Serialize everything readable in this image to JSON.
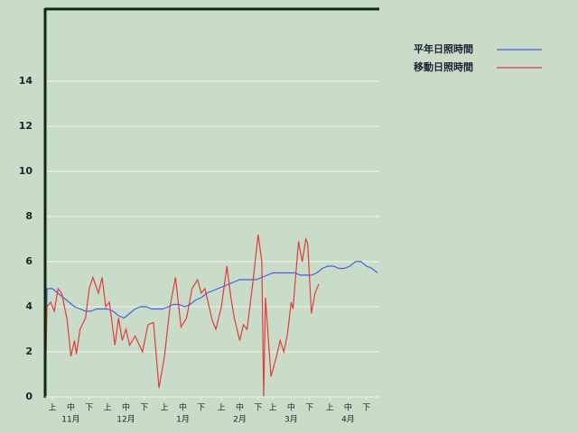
{
  "chart_data": {
    "type": "line",
    "series": [
      {
        "name": "平年日照時間",
        "color": "#4a5ee0",
        "x": [
          0,
          1,
          4,
          7,
          10,
          13,
          16,
          19,
          22,
          25,
          28,
          31,
          34,
          37,
          40,
          43,
          46,
          49,
          52,
          55,
          58,
          61,
          64,
          67,
          70,
          73,
          76,
          79,
          82,
          85,
          88,
          91,
          94,
          97,
          100,
          103,
          106,
          109,
          112,
          115,
          118,
          121,
          124,
          127,
          130,
          133,
          136,
          139,
          142,
          145,
          148,
          151,
          154,
          157,
          160,
          163,
          166,
          169,
          172,
          175,
          178,
          181
        ],
        "values": [
          0,
          4.8,
          4.8,
          4.6,
          4.4,
          4.2,
          4.0,
          3.9,
          3.8,
          3.8,
          3.9,
          3.9,
          3.9,
          3.8,
          3.6,
          3.5,
          3.7,
          3.9,
          4.0,
          4.0,
          3.9,
          3.9,
          3.9,
          4.0,
          4.1,
          4.1,
          4.0,
          4.1,
          4.3,
          4.4,
          4.6,
          4.7,
          4.8,
          4.9,
          5.0,
          5.1,
          5.2,
          5.2,
          5.2,
          5.2,
          5.3,
          5.4,
          5.5,
          5.5,
          5.5,
          5.5,
          5.5,
          5.4,
          5.4,
          5.4,
          5.5,
          5.7,
          5.8,
          5.8,
          5.7,
          5.7,
          5.8,
          6.0,
          6.0,
          5.8,
          5.7,
          5.5
        ]
      },
      {
        "name": "移動日照時間",
        "color": "#e03c3c",
        "x": [
          0,
          1,
          3,
          5,
          7,
          9,
          12,
          14,
          16,
          17,
          19,
          22,
          24,
          26,
          29,
          31,
          33,
          35,
          38,
          40,
          42,
          44,
          46,
          49,
          53,
          56,
          59,
          62,
          65,
          68,
          71,
          74,
          77,
          80,
          83,
          85,
          87,
          91,
          93,
          96,
          99,
          101,
          103,
          106,
          108,
          110,
          113,
          116,
          118,
          119,
          120,
          123,
          126,
          128,
          130,
          132,
          134,
          135,
          138,
          140,
          142,
          143,
          145,
          147,
          149
        ],
        "values": [
          0,
          4.0,
          4.2,
          3.8,
          4.8,
          4.6,
          3.4,
          1.8,
          2.5,
          1.9,
          3.0,
          3.5,
          4.8,
          5.3,
          4.6,
          5.3,
          4.0,
          4.2,
          2.3,
          3.5,
          2.5,
          3.0,
          2.3,
          2.7,
          2.0,
          3.2,
          3.3,
          0.4,
          1.8,
          4.0,
          5.3,
          3.1,
          3.5,
          4.8,
          5.2,
          4.6,
          4.8,
          3.4,
          3.0,
          4.0,
          5.8,
          4.5,
          3.5,
          2.5,
          3.2,
          3.0,
          5.0,
          7.2,
          6.0,
          0,
          4.4,
          0.9,
          1.8,
          2.5,
          2.0,
          2.8,
          4.2,
          3.9,
          6.9,
          6.0,
          7.0,
          6.8,
          3.7,
          4.6,
          5.0
        ]
      }
    ],
    "xlim": [
      0,
      182
    ],
    "xticks": [
      {
        "value": 4,
        "label": "上"
      },
      {
        "value": 14,
        "label": "中"
      },
      {
        "value": 24,
        "label": "下"
      },
      {
        "value": 34,
        "label": "上"
      },
      {
        "value": 44,
        "label": "中"
      },
      {
        "value": 54,
        "label": "下"
      },
      {
        "value": 65,
        "label": "上"
      },
      {
        "value": 75,
        "label": "中"
      },
      {
        "value": 85,
        "label": "下"
      },
      {
        "value": 96,
        "label": "上"
      },
      {
        "value": 106,
        "label": "中"
      },
      {
        "value": 116,
        "label": "下"
      },
      {
        "value": 124,
        "label": "上"
      },
      {
        "value": 134,
        "label": "中"
      },
      {
        "value": 144,
        "label": "下"
      },
      {
        "value": 155,
        "label": "上"
      },
      {
        "value": 165,
        "label": "中"
      },
      {
        "value": 175,
        "label": "下"
      }
    ],
    "month_ticks": [
      {
        "value": 14,
        "label": "11月"
      },
      {
        "value": 44,
        "label": "12月"
      },
      {
        "value": 75,
        "label": "1月"
      },
      {
        "value": 106,
        "label": "2月"
      },
      {
        "value": 134,
        "label": "3月"
      },
      {
        "value": 165,
        "label": "4月"
      }
    ],
    "ylim": [
      0,
      17.2
    ],
    "yticks": [
      0,
      2,
      4,
      6,
      8,
      10,
      12,
      14
    ],
    "grid": true
  }
}
